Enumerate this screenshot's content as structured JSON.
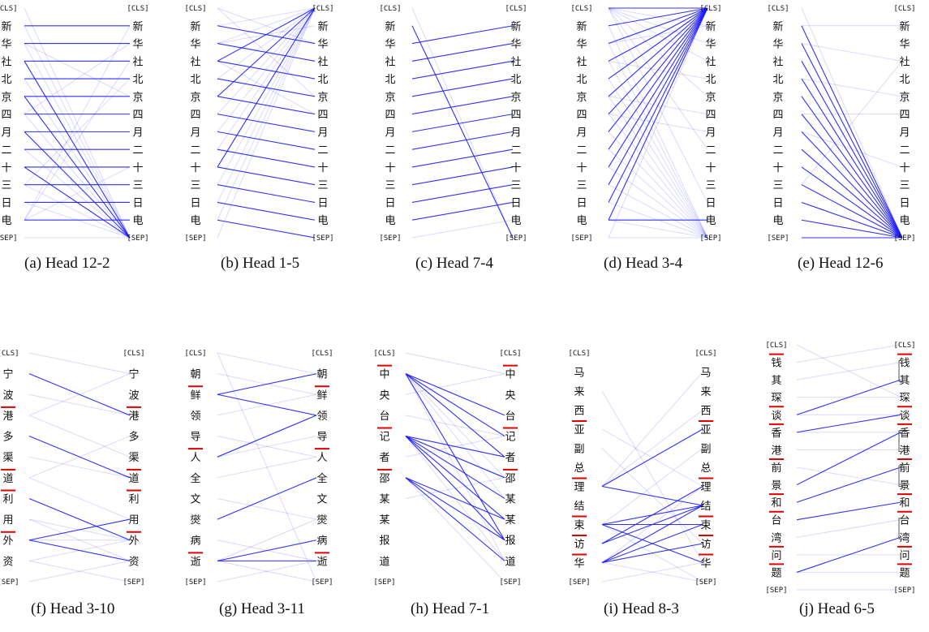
{
  "panels": [
    {
      "caption": "(a)  Head 12-2",
      "tokens": [
        "[CLS]",
        "新",
        "华",
        "社",
        "北",
        "京",
        "四",
        "月",
        "二",
        "十",
        "三",
        "日",
        "电",
        "[SEP]"
      ],
      "strong": [
        [
          1,
          1
        ],
        [
          2,
          2
        ],
        [
          3,
          3
        ],
        [
          4,
          4
        ],
        [
          5,
          5
        ],
        [
          6,
          6
        ],
        [
          7,
          7
        ],
        [
          8,
          8
        ],
        [
          9,
          9
        ],
        [
          10,
          10
        ],
        [
          11,
          11
        ],
        [
          12,
          12
        ],
        [
          3,
          13
        ],
        [
          5,
          13
        ],
        [
          7,
          13
        ],
        [
          9,
          13
        ]
      ],
      "weak": [
        [
          0,
          13
        ],
        [
          1,
          13
        ],
        [
          2,
          13
        ],
        [
          4,
          13
        ],
        [
          6,
          13
        ],
        [
          8,
          13
        ],
        [
          10,
          13
        ],
        [
          12,
          1
        ],
        [
          12,
          3
        ],
        [
          2,
          5
        ],
        [
          6,
          2
        ],
        [
          11,
          13
        ],
        [
          13,
          13
        ],
        [
          12,
          9
        ],
        [
          10,
          4
        ]
      ],
      "underline": []
    },
    {
      "caption": "(b)  Head 1-5",
      "tokens": [
        "[CLS]",
        "新",
        "华",
        "社",
        "北",
        "京",
        "四",
        "月",
        "二",
        "十",
        "三",
        "日",
        "电",
        "[SEP]"
      ],
      "strong": [
        [
          1,
          2
        ],
        [
          2,
          3
        ],
        [
          3,
          4
        ],
        [
          4,
          5
        ],
        [
          5,
          6
        ],
        [
          6,
          7
        ],
        [
          7,
          8
        ],
        [
          8,
          9
        ],
        [
          9,
          10
        ],
        [
          10,
          11
        ],
        [
          11,
          12
        ],
        [
          12,
          13
        ],
        [
          5,
          0
        ],
        [
          3,
          0
        ],
        [
          9,
          0
        ]
      ],
      "weak": [
        [
          1,
          0
        ],
        [
          2,
          0
        ],
        [
          4,
          0
        ],
        [
          6,
          0
        ],
        [
          7,
          0
        ],
        [
          8,
          0
        ],
        [
          10,
          0
        ],
        [
          11,
          0
        ],
        [
          12,
          0
        ],
        [
          0,
          2
        ],
        [
          0,
          5
        ],
        [
          13,
          0
        ],
        [
          3,
          6
        ],
        [
          2,
          1
        ]
      ],
      "underline": []
    },
    {
      "caption": "(c)  Head 7-4",
      "tokens": [
        "[CLS]",
        "新",
        "华",
        "社",
        "北",
        "京",
        "四",
        "月",
        "二",
        "十",
        "三",
        "日",
        "电",
        "[SEP]"
      ],
      "strong": [
        [
          1,
          13
        ],
        [
          2,
          1
        ],
        [
          3,
          2
        ],
        [
          4,
          3
        ],
        [
          5,
          4
        ],
        [
          6,
          5
        ],
        [
          7,
          6
        ],
        [
          8,
          7
        ],
        [
          9,
          8
        ],
        [
          10,
          9
        ],
        [
          11,
          10
        ],
        [
          12,
          11
        ]
      ],
      "weak": [
        [
          13,
          12
        ],
        [
          0,
          13
        ]
      ],
      "underline": []
    },
    {
      "caption": "(d)  Head 3-4",
      "tokens": [
        "[CLS]",
        "新",
        "华",
        "社",
        "北",
        "京",
        "四",
        "月",
        "二",
        "十",
        "三",
        "日",
        "电",
        "[SEP]"
      ],
      "strong": [
        [
          1,
          0
        ],
        [
          2,
          0
        ],
        [
          3,
          0
        ],
        [
          4,
          0
        ],
        [
          5,
          0
        ],
        [
          6,
          0
        ],
        [
          7,
          0
        ],
        [
          8,
          0
        ],
        [
          9,
          0
        ],
        [
          10,
          0
        ],
        [
          11,
          0
        ],
        [
          12,
          0
        ],
        [
          0,
          0
        ],
        [
          12,
          12
        ]
      ],
      "weak": [
        [
          0,
          1
        ],
        [
          0,
          2
        ],
        [
          0,
          3
        ],
        [
          0,
          5
        ],
        [
          0,
          8
        ],
        [
          0,
          11
        ],
        [
          1,
          13
        ],
        [
          2,
          13
        ],
        [
          3,
          13
        ],
        [
          4,
          13
        ],
        [
          5,
          13
        ],
        [
          6,
          13
        ],
        [
          7,
          13
        ],
        [
          8,
          13
        ],
        [
          9,
          13
        ],
        [
          10,
          13
        ],
        [
          11,
          13
        ],
        [
          12,
          13
        ],
        [
          2,
          1
        ],
        [
          3,
          4
        ],
        [
          6,
          7
        ],
        [
          13,
          0
        ],
        [
          13,
          13
        ],
        [
          5,
          6
        ]
      ],
      "underline": []
    },
    {
      "caption": "(e)  Head 12-6",
      "tokens": [
        "[CLS]",
        "新",
        "华",
        "社",
        "北",
        "京",
        "四",
        "月",
        "二",
        "十",
        "三",
        "日",
        "电",
        "[SEP]"
      ],
      "strong": [
        [
          1,
          13
        ],
        [
          2,
          13
        ],
        [
          3,
          13
        ],
        [
          4,
          13
        ],
        [
          5,
          13
        ],
        [
          6,
          13
        ],
        [
          7,
          13
        ],
        [
          8,
          13
        ],
        [
          9,
          13
        ],
        [
          10,
          13
        ],
        [
          11,
          13
        ],
        [
          12,
          13
        ],
        [
          13,
          13
        ]
      ],
      "weak": [
        [
          1,
          1
        ],
        [
          2,
          3
        ],
        [
          4,
          5
        ],
        [
          6,
          6
        ],
        [
          7,
          9
        ],
        [
          0,
          13
        ],
        [
          10,
          3
        ],
        [
          11,
          13
        ]
      ],
      "underline": []
    },
    {
      "caption": "(f)  Head 3-10",
      "tokens": [
        "[CLS]",
        "宁",
        "波",
        "港",
        "多",
        "渠",
        "道",
        "利",
        "用",
        "外",
        "资",
        "[SEP]"
      ],
      "strong": [
        [
          1,
          3
        ],
        [
          4,
          6
        ],
        [
          7,
          9
        ],
        [
          9,
          8
        ],
        [
          9,
          10
        ]
      ],
      "weak": [
        [
          0,
          1
        ],
        [
          2,
          3
        ],
        [
          3,
          1
        ],
        [
          5,
          6
        ],
        [
          6,
          4
        ],
        [
          8,
          9
        ],
        [
          10,
          9
        ],
        [
          11,
          10
        ],
        [
          8,
          10
        ],
        [
          9,
          9
        ],
        [
          3,
          5
        ],
        [
          6,
          8
        ],
        [
          10,
          11
        ]
      ],
      "underline": [
        3,
        6,
        7,
        9
      ]
    },
    {
      "caption": "(g)  Head 3-11",
      "tokens": [
        "[CLS]",
        "朝",
        "鲜",
        "领",
        "导",
        "人",
        "全",
        "文",
        "爕",
        "病",
        "逝",
        "[SEP]"
      ],
      "strong": [
        [
          2,
          1
        ],
        [
          2,
          3
        ],
        [
          5,
          3
        ],
        [
          8,
          6
        ],
        [
          10,
          9
        ],
        [
          10,
          10
        ]
      ],
      "weak": [
        [
          0,
          1
        ],
        [
          1,
          2
        ],
        [
          3,
          2
        ],
        [
          4,
          5
        ],
        [
          5,
          4
        ],
        [
          6,
          5
        ],
        [
          7,
          8
        ],
        [
          9,
          10
        ],
        [
          11,
          10
        ],
        [
          10,
          8
        ],
        [
          10,
          11
        ],
        [
          0,
          11
        ]
      ],
      "underline": [
        2,
        5,
        10
      ]
    },
    {
      "caption": "(h)  Head 7-1",
      "tokens": [
        "[CLS]",
        "中",
        "央",
        "台",
        "记",
        "者",
        "邵",
        "某",
        "某",
        "报",
        "道",
        "[SEP]"
      ],
      "strong": [
        [
          1,
          3
        ],
        [
          1,
          4
        ],
        [
          1,
          5
        ],
        [
          1,
          9
        ],
        [
          4,
          5
        ],
        [
          4,
          6
        ],
        [
          4,
          7
        ],
        [
          4,
          9
        ],
        [
          6,
          8
        ],
        [
          6,
          9
        ],
        [
          6,
          10
        ],
        [
          4,
          8
        ]
      ],
      "weak": [
        [
          1,
          6
        ],
        [
          1,
          7
        ],
        [
          1,
          10
        ],
        [
          4,
          10
        ],
        [
          6,
          11
        ],
        [
          0,
          1
        ],
        [
          2,
          1
        ],
        [
          3,
          4
        ],
        [
          5,
          4
        ],
        [
          7,
          6
        ]
      ],
      "underline": [
        1,
        4,
        6
      ]
    },
    {
      "caption": "(i)  Head 8-3",
      "tokens": [
        "[CLS]",
        "马",
        "来",
        "西",
        "亚",
        "副",
        "总",
        "理",
        "结",
        "束",
        "访",
        "华",
        "[SEP]"
      ],
      "strong": [
        [
          7,
          4
        ],
        [
          7,
          8
        ],
        [
          9,
          8
        ],
        [
          9,
          9
        ],
        [
          10,
          8
        ],
        [
          11,
          9
        ],
        [
          11,
          8
        ],
        [
          11,
          10
        ],
        [
          9,
          11
        ],
        [
          10,
          7
        ]
      ],
      "weak": [
        [
          7,
          1
        ],
        [
          7,
          3
        ],
        [
          9,
          5
        ],
        [
          11,
          7
        ],
        [
          4,
          7
        ],
        [
          9,
          12
        ],
        [
          11,
          12
        ],
        [
          2,
          11
        ],
        [
          5,
          10
        ],
        [
          12,
          11
        ]
      ],
      "underline": [
        4,
        7,
        9,
        10,
        11
      ]
    },
    {
      "caption": "(j)  Head 6-5",
      "tokens": [
        "[CLS]",
        "钱",
        "其",
        "琛",
        "谈",
        "香",
        "港",
        "前",
        "景",
        "和",
        "台",
        "湾",
        "问",
        "题",
        "[SEP]"
      ],
      "strong": [
        [
          4,
          2
        ],
        [
          5,
          4
        ],
        [
          8,
          5
        ],
        [
          9,
          7
        ],
        [
          10,
          9
        ],
        [
          13,
          11
        ]
      ],
      "weak": [
        [
          1,
          0
        ],
        [
          2,
          1
        ],
        [
          3,
          3
        ],
        [
          4,
          4
        ],
        [
          6,
          6
        ],
        [
          7,
          8
        ],
        [
          11,
          10
        ],
        [
          12,
          12
        ],
        [
          14,
          14
        ],
        [
          0,
          3
        ],
        [
          13,
          13
        ],
        [
          5,
          5
        ]
      ],
      "underline": [
        1,
        4,
        5,
        7,
        9,
        10,
        12,
        13
      ],
      "brackets": [
        [
          1,
          2
        ],
        [
          5,
          6
        ],
        [
          7,
          8
        ],
        [
          10,
          11
        ]
      ]
    }
  ]
}
